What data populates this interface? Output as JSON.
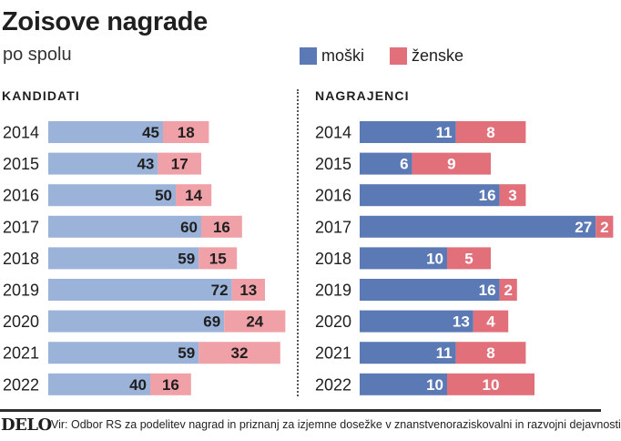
{
  "title": "Zoisove nagrade",
  "subtitle": "po spolu",
  "legend": [
    {
      "label": "moški",
      "color": "#5b79b4"
    },
    {
      "label": "ženske",
      "color": "#e2707a"
    }
  ],
  "footer": {
    "logo": "DELO",
    "source": "Vir: Odbor RS za podelitev nagrad in priznanj za izjemne dosežke v znanstvenoraziskovalni in razvojni dejavnosti"
  },
  "chart_data": [
    {
      "type": "bar",
      "orientation": "horizontal",
      "stacked": true,
      "title": "KANDIDATI",
      "categories": [
        "2014",
        "2015",
        "2016",
        "2017",
        "2018",
        "2019",
        "2020",
        "2021",
        "2022"
      ],
      "series": [
        {
          "name": "moški",
          "values": [
            45,
            43,
            50,
            60,
            59,
            72,
            69,
            59,
            40
          ],
          "color": "#9cb3d9",
          "text_color": "#1f1f1f"
        },
        {
          "name": "ženske",
          "values": [
            18,
            17,
            14,
            16,
            15,
            13,
            24,
            32,
            16
          ],
          "color": "#f0a1a8",
          "text_color": "#1f1f1f"
        }
      ]
    },
    {
      "type": "bar",
      "orientation": "horizontal",
      "stacked": true,
      "title": "NAGRAJENCI",
      "categories": [
        "2014",
        "2015",
        "2016",
        "2017",
        "2018",
        "2019",
        "2020",
        "2021",
        "2022"
      ],
      "series": [
        {
          "name": "moški",
          "values": [
            11,
            6,
            16,
            27,
            10,
            16,
            13,
            11,
            10
          ],
          "color": "#5b79b4",
          "text_color": "#ffffff"
        },
        {
          "name": "ženske",
          "values": [
            8,
            9,
            3,
            2,
            5,
            2,
            4,
            8,
            10
          ],
          "color": "#e2707a",
          "text_color": "#ffffff"
        }
      ]
    }
  ]
}
